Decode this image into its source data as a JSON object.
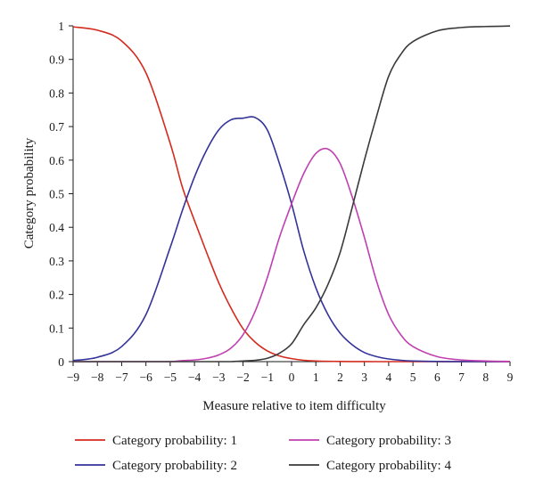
{
  "chart_data": {
    "type": "line",
    "title": "",
    "xlabel": "Measure relative to item difficulty",
    "ylabel": "Category probability",
    "xlim": [
      -9,
      9
    ],
    "ylim": [
      0,
      1
    ],
    "x_ticks": [
      "-9",
      "-8",
      "-7",
      "-6",
      "-5",
      "-4",
      "-3",
      "-2",
      "-1",
      "0",
      "1",
      "2",
      "3",
      "4",
      "5",
      "6",
      "7",
      "8",
      "9"
    ],
    "y_ticks": [
      "0",
      "0.1",
      "0.2",
      "0.3",
      "0.4",
      "0.5",
      "0.6",
      "0.7",
      "0.8",
      "0.9",
      "1"
    ],
    "grid": false,
    "legend_position": "bottom",
    "x": [
      -9,
      -8,
      -7,
      -6,
      -5,
      -4.5,
      -4,
      -3.5,
      -3,
      -2.5,
      -2,
      -1.5,
      -1,
      -0.5,
      0,
      0.5,
      1,
      1.5,
      2,
      2.5,
      3,
      3.5,
      4,
      4.5,
      5,
      6,
      7,
      8,
      9
    ],
    "series": [
      {
        "name": "Category probability: 1",
        "color": "#d42b1e",
        "values": [
          0.997,
          0.987,
          0.955,
          0.86,
          0.65,
          0.52,
          0.42,
          0.325,
          0.235,
          0.16,
          0.098,
          0.058,
          0.032,
          0.017,
          0.009,
          0.004,
          0.002,
          0.001,
          0.0005,
          0.0002,
          0.0001,
          0,
          0,
          0,
          0,
          0,
          0,
          0,
          0
        ]
      },
      {
        "name": "Category probability: 2",
        "color": "#33339a",
        "values": [
          0.003,
          0.013,
          0.045,
          0.14,
          0.34,
          0.45,
          0.55,
          0.63,
          0.69,
          0.72,
          0.725,
          0.727,
          0.69,
          0.59,
          0.47,
          0.33,
          0.22,
          0.14,
          0.085,
          0.05,
          0.027,
          0.015,
          0.008,
          0.004,
          0.002,
          0.0005,
          0.0001,
          0,
          0
        ]
      },
      {
        "name": "Category probability: 3",
        "color": "#c040b0",
        "values": [
          0,
          0,
          0,
          0,
          0,
          0.003,
          0.005,
          0.01,
          0.02,
          0.04,
          0.08,
          0.15,
          0.25,
          0.37,
          0.47,
          0.56,
          0.62,
          0.633,
          0.59,
          0.49,
          0.37,
          0.24,
          0.14,
          0.08,
          0.045,
          0.015,
          0.005,
          0.002,
          0.0005
        ]
      },
      {
        "name": "Category probability: 4",
        "color": "#3a3a3a",
        "values": [
          0,
          0,
          0,
          0,
          0,
          0,
          0,
          0,
          0,
          0,
          0.002,
          0.004,
          0.01,
          0.025,
          0.053,
          0.11,
          0.16,
          0.23,
          0.325,
          0.46,
          0.6,
          0.73,
          0.85,
          0.915,
          0.953,
          0.985,
          0.995,
          0.998,
          0.9995
        ]
      }
    ]
  }
}
